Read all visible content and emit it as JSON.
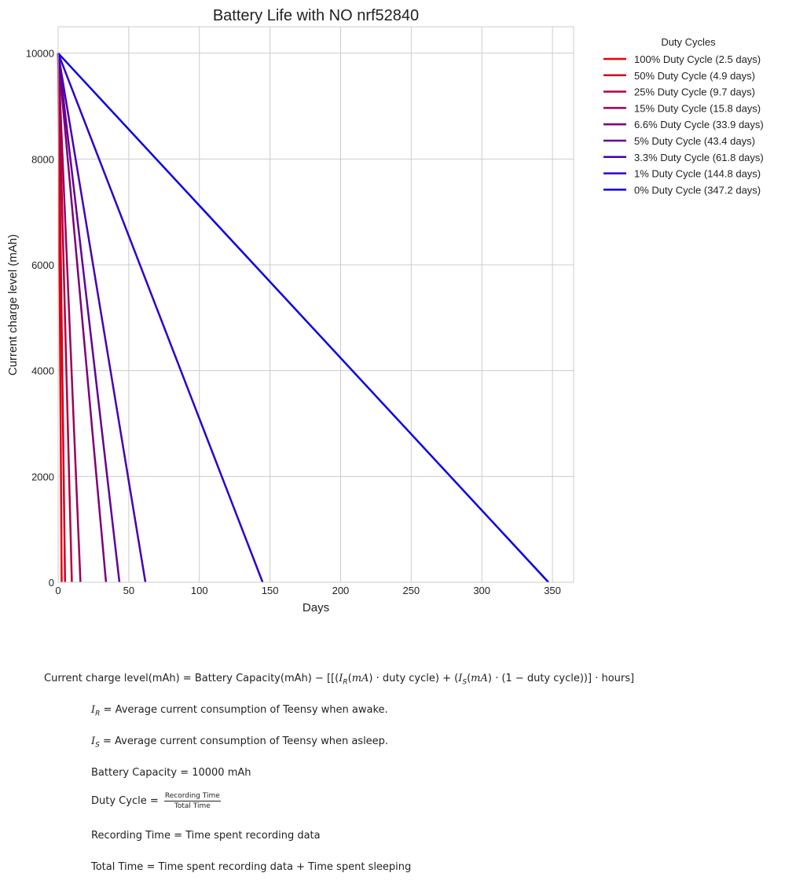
{
  "chart_data": {
    "type": "line",
    "title": "Battery Life with NO nrf52840",
    "xlabel": "Days",
    "ylabel": "Current charge level (mAh)",
    "xlim": [
      0,
      365
    ],
    "ylim": [
      0,
      10500
    ],
    "xticks": [
      0,
      50,
      100,
      150,
      200,
      250,
      300,
      350
    ],
    "yticks": [
      0,
      2000,
      4000,
      6000,
      8000,
      10000
    ],
    "grid": true,
    "legend": {
      "title": "Duty Cycles",
      "placement": "outside-top-right"
    },
    "series": [
      {
        "name": "100% Duty Cycle (2.5 days)",
        "color": "#e8000b",
        "x": [
          0,
          2.5
        ],
        "y": [
          10000,
          0
        ]
      },
      {
        "name": "50% Duty Cycle (4.9 days)",
        "color": "#d00024",
        "x": [
          0,
          4.9
        ],
        "y": [
          10000,
          0
        ]
      },
      {
        "name": "25% Duty Cycle (9.7 days)",
        "color": "#b4003e",
        "x": [
          0,
          9.7
        ],
        "y": [
          10000,
          0
        ]
      },
      {
        "name": "15% Duty Cycle (15.8 days)",
        "color": "#9c005a",
        "x": [
          0,
          15.8
        ],
        "y": [
          10000,
          0
        ]
      },
      {
        "name": "6.6% Duty Cycle (33.9 days)",
        "color": "#7d0078",
        "x": [
          0,
          33.9
        ],
        "y": [
          10000,
          0
        ]
      },
      {
        "name": "5% Duty Cycle (43.4 days)",
        "color": "#620096",
        "x": [
          0,
          43.4
        ],
        "y": [
          10000,
          0
        ]
      },
      {
        "name": "3.3% Duty Cycle (61.8 days)",
        "color": "#4600b2",
        "x": [
          0,
          61.8
        ],
        "y": [
          10000,
          0
        ]
      },
      {
        "name": "1% Duty Cycle (144.8 days)",
        "color": "#2e00cc",
        "x": [
          0,
          144.8
        ],
        "y": [
          10000,
          0
        ]
      },
      {
        "name": "0% Duty Cycle (347.2 days)",
        "color": "#0a00e6",
        "x": [
          0,
          347.2
        ],
        "y": [
          10000,
          0
        ]
      }
    ]
  },
  "formulas": {
    "main_lhs": "Current charge level(mAh) = Battery Capacity(mAh) − [[(",
    "main_ir": "I",
    "main_ir_sub": "R",
    "main_mid1": "(",
    "main_ma1": "mA",
    "main_mid2": ") · duty cycle) + (",
    "main_is": "I",
    "main_is_sub": "S",
    "main_mid3": "(",
    "main_ma2": "mA",
    "main_tail": ") · (1 − duty cycle))] · hours]",
    "ir_symbol": "I",
    "ir_sub": "R",
    "ir_def": " = Average current consumption of Teensy when awake.",
    "is_symbol": "I",
    "is_sub": "S",
    "is_def": " = Average current consumption of Teensy when asleep.",
    "battery": "Battery Capacity = 10000 mAh",
    "duty_lhs": "Duty Cycle = ",
    "duty_num": "Recording Time",
    "duty_den": "Total Time",
    "recording": "Recording Time = Time spent recording data",
    "total": "Total Time = Time spent recording data + Time spent sleeping"
  }
}
